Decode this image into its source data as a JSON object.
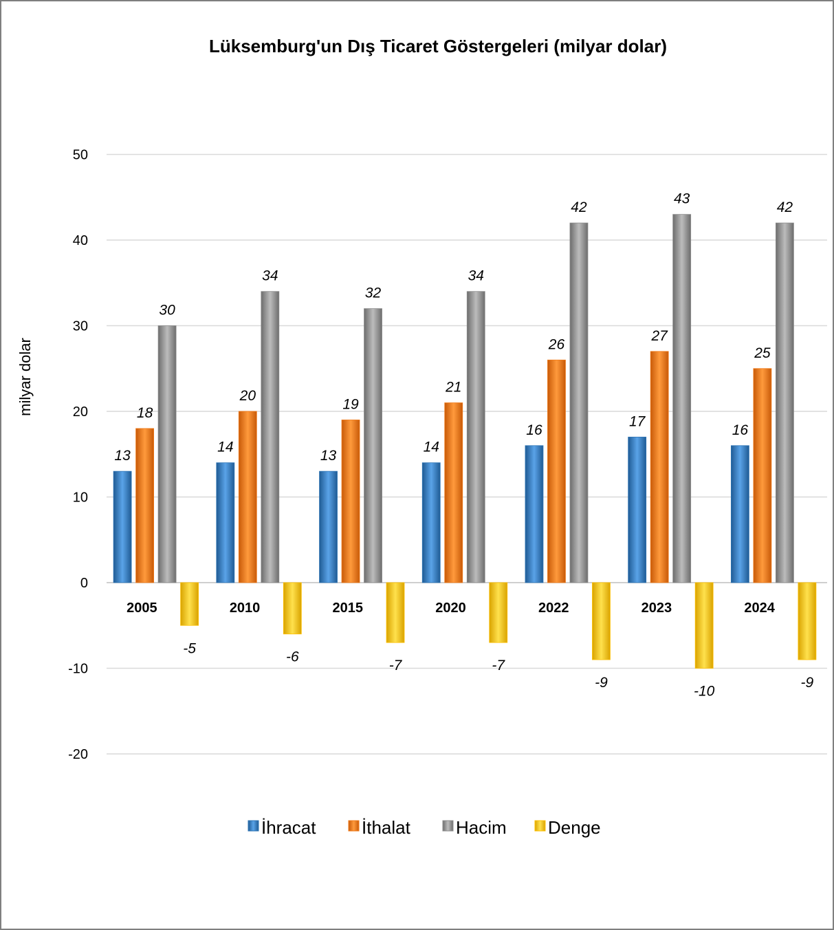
{
  "chart_data": {
    "type": "bar",
    "title": "Lüksemburg'un Dış Ticaret Göstergeleri (milyar dolar)",
    "ylabel": "milyar dolar",
    "xlabel": "",
    "ylim": [
      -20,
      50
    ],
    "yticks": [
      -20,
      -10,
      0,
      10,
      20,
      30,
      40,
      50
    ],
    "grid": true,
    "legend_position": "bottom",
    "categories": [
      "2005",
      "2010",
      "2015",
      "2020",
      "2022",
      "2023",
      "2024"
    ],
    "series": [
      {
        "name": "İhracat",
        "color": "#2e75b6",
        "values": [
          13,
          14,
          13,
          14,
          16,
          17,
          16
        ]
      },
      {
        "name": "İthalat",
        "color": "#f07b1a",
        "values": [
          18,
          20,
          19,
          21,
          26,
          27,
          25
        ]
      },
      {
        "name": "Hacim",
        "color": "#8c8c8c",
        "values": [
          30,
          34,
          32,
          34,
          42,
          43,
          42
        ]
      },
      {
        "name": "Denge",
        "color": "#ffc000",
        "values": [
          -5,
          -6,
          -7,
          -7,
          -9,
          -10,
          -9
        ]
      }
    ]
  }
}
